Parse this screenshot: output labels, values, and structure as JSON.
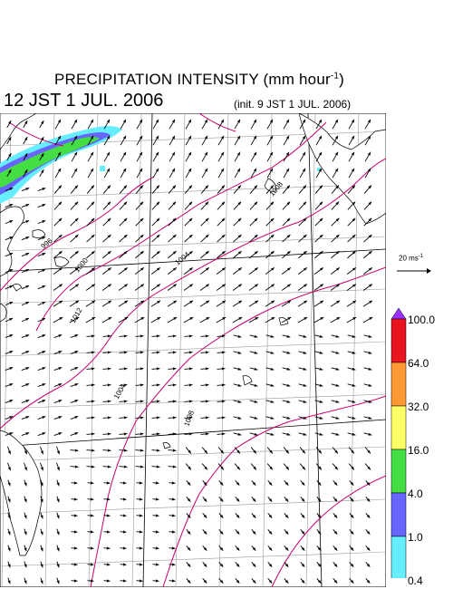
{
  "header": {
    "title": "PRECIPITATION INTENSITY (mm hour",
    "title_unit_exp": "-1",
    "title_close": ")",
    "valid_time": "12 JST 1 JUL. 2006",
    "init_time": "(init. 9 JST 1 JUL. 2006)"
  },
  "reference_vector": {
    "label": "20 ms",
    "label_exp": "-1"
  },
  "contours": {
    "labels": [
      "996",
      "1000",
      "1004",
      "1004",
      "1008",
      "1008",
      "1012"
    ]
  },
  "legend": {
    "levels": [
      "100.0",
      "64.0",
      "32.0",
      "16.0",
      "4.0",
      "1.0",
      "0.4"
    ],
    "colors": [
      "#9b30ff",
      "#e8141e",
      "#ff9933",
      "#ffff66",
      "#44dd44",
      "#6666ff",
      "#66eeff"
    ]
  },
  "colors": {
    "contour": "#c8006e",
    "coast": "#000000",
    "grid": "#999999",
    "wind_arrow": "#000000"
  }
}
